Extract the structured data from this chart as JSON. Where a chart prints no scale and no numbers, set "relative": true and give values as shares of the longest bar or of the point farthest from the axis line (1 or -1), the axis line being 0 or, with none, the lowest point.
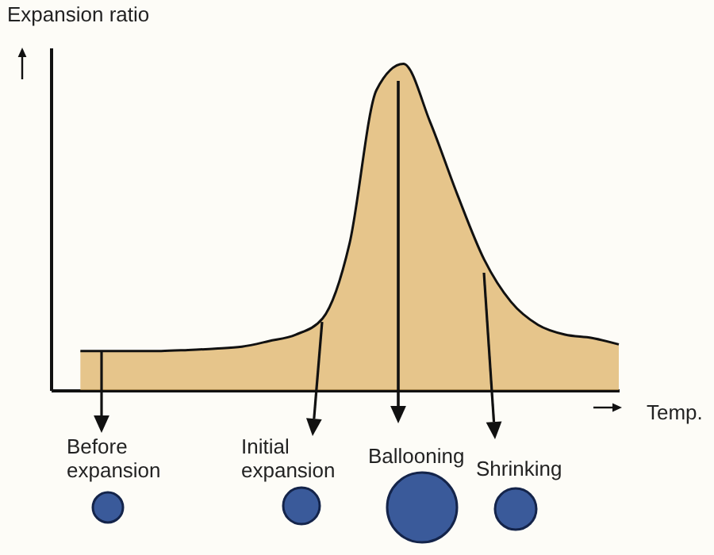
{
  "chart_data": {
    "type": "area",
    "relative": true,
    "xlabel": "Temp.",
    "ylabel": "Expansion ratio",
    "categories": [
      null,
      null,
      null,
      null,
      null,
      null,
      null,
      null,
      null,
      null,
      null,
      null,
      null,
      null,
      null,
      null,
      null,
      null,
      null,
      null,
      null
    ],
    "series": [
      {
        "color": "#dcae5c",
        "values": [
          0.12,
          0.12,
          0.12,
          0.12,
          0.123,
          0.127,
          0.133,
          0.15,
          0.17,
          0.22,
          0.45,
          0.92,
          1,
          0.82,
          0.6,
          0.4,
          0.27,
          0.2,
          0.17,
          0.16,
          0.14
        ]
      }
    ],
    "annotations": [
      "Before expansion",
      "Initial expansion",
      "Ballooning",
      "Shrinking"
    ]
  }
}
